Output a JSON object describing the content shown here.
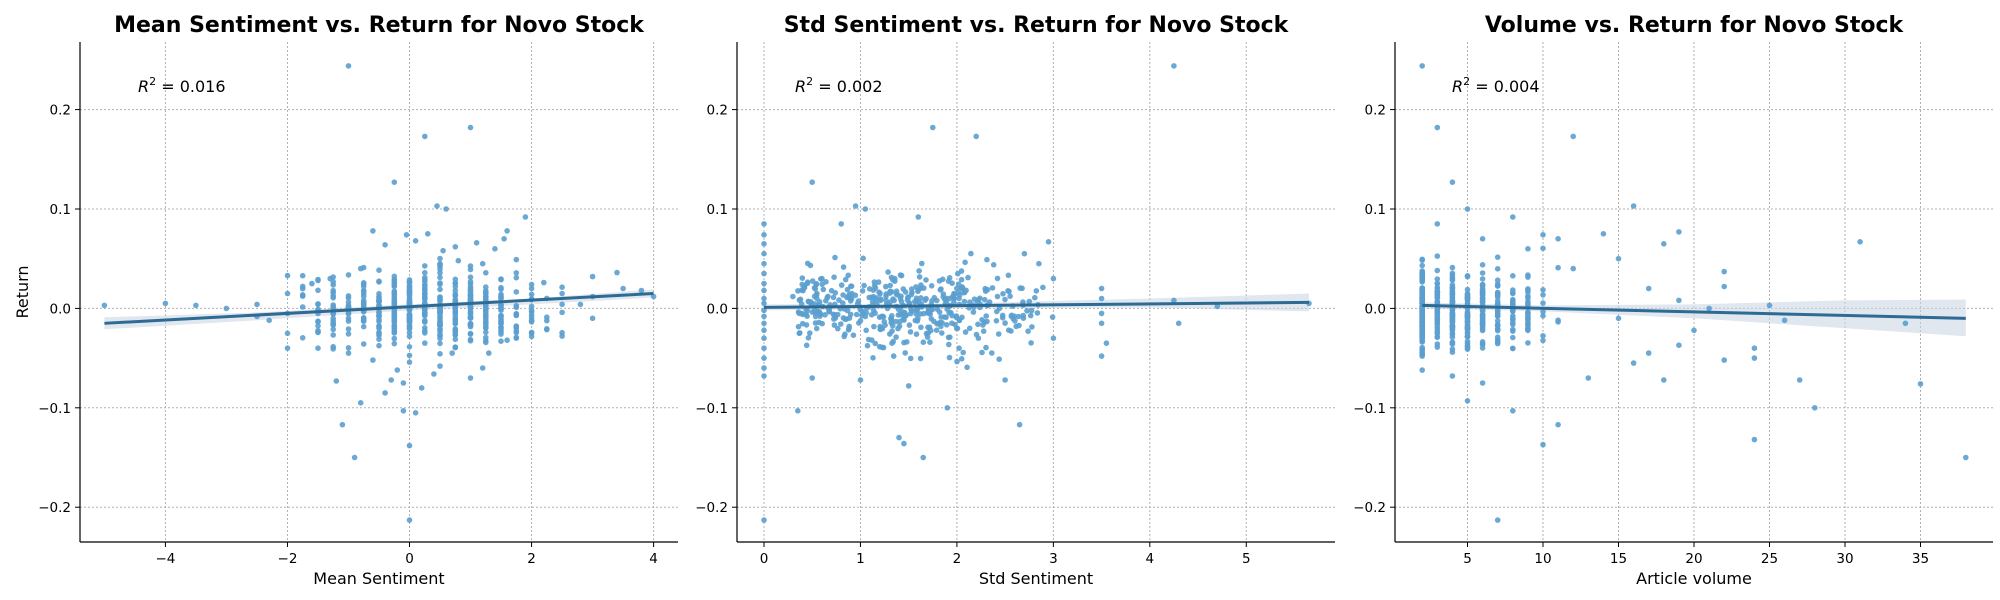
{
  "chart_data": [
    {
      "type": "scatter",
      "title": "Mean Sentiment vs. Return for Novo Stock",
      "xlabel": "Mean Sentiment",
      "ylabel": "Return",
      "annotation": {
        "prefix": "R",
        "sup": "2",
        "value": " = 0.016"
      },
      "xlim": [
        -5.4,
        4.4
      ],
      "ylim": [
        -0.235,
        0.268
      ],
      "xticks": [
        -4,
        -2,
        0,
        2,
        4
      ],
      "xticklabels": [
        "−4",
        "−2",
        "0",
        "2",
        "4"
      ],
      "yticks": [
        -0.2,
        -0.1,
        0.0,
        0.1,
        0.2
      ],
      "yticklabels": [
        "−0.2",
        "−0.1",
        "0.0",
        "0.1",
        "0.2"
      ],
      "grid": true,
      "point_color": "#5b9fcf",
      "line_color": "#2d6a94",
      "band_color": "#c6d4e1",
      "fit": {
        "x": [
          -5,
          4
        ],
        "y": [
          -0.015,
          0.015
        ]
      },
      "band": {
        "x": [
          -5,
          -2.5,
          0,
          2,
          4
        ],
        "upper": [
          -0.009,
          -0.004,
          0.004,
          0.01,
          0.019
        ],
        "lower": [
          -0.021,
          -0.012,
          -0.002,
          0.004,
          0.011
        ]
      },
      "points": [
        [
          -1.0,
          0.244
        ],
        [
          1.0,
          0.182
        ],
        [
          0.25,
          0.173
        ],
        [
          -0.25,
          0.127
        ],
        [
          0.45,
          0.103
        ],
        [
          0.6,
          0.1
        ],
        [
          1.9,
          0.092
        ],
        [
          1.6,
          0.078
        ],
        [
          1.55,
          0.07
        ],
        [
          -0.6,
          0.078
        ],
        [
          0.3,
          0.075
        ],
        [
          -0.05,
          0.074
        ],
        [
          0.1,
          0.068
        ],
        [
          1.1,
          0.066
        ],
        [
          0.75,
          0.062
        ],
        [
          -0.4,
          0.064
        ],
        [
          0.55,
          0.058
        ],
        [
          1.4,
          0.06
        ],
        [
          -5.0,
          0.003
        ],
        [
          -4.0,
          0.005
        ],
        [
          -3.5,
          0.003
        ],
        [
          -3.0,
          0.0
        ],
        [
          -2.5,
          0.004
        ],
        [
          -2.5,
          -0.008
        ],
        [
          -2.0,
          0.033
        ],
        [
          -2.0,
          0.015
        ],
        [
          -2.0,
          -0.005
        ],
        [
          -2.0,
          -0.025
        ],
        [
          -2.0,
          -0.04
        ],
        [
          3.0,
          0.032
        ],
        [
          3.0,
          0.012
        ],
        [
          3.4,
          0.036
        ],
        [
          3.5,
          0.02
        ],
        [
          3.0,
          -0.01
        ],
        [
          2.5,
          0.015
        ],
        [
          2.5,
          -0.004
        ],
        [
          4.0,
          0.012
        ],
        [
          3.8,
          0.018
        ],
        [
          2.8,
          0.004
        ],
        [
          2.0,
          0.02
        ],
        [
          2.0,
          -0.025
        ],
        [
          2.2,
          0.026
        ],
        [
          -0.3,
          -0.072
        ],
        [
          -0.1,
          -0.075
        ],
        [
          -0.4,
          -0.085
        ],
        [
          -0.8,
          -0.095
        ],
        [
          0.0,
          -0.138
        ],
        [
          0.0,
          -0.213
        ],
        [
          -1.1,
          -0.117
        ],
        [
          -0.9,
          -0.15
        ],
        [
          -0.1,
          -0.103
        ],
        [
          0.1,
          -0.105
        ],
        [
          0.2,
          -0.08
        ],
        [
          0.5,
          -0.058
        ],
        [
          1.2,
          -0.06
        ],
        [
          1.0,
          -0.07
        ],
        [
          -1.2,
          -0.073
        ],
        [
          1.6,
          -0.032
        ],
        [
          -1.5,
          -0.04
        ],
        [
          -1.0,
          -0.045
        ],
        [
          -0.6,
          -0.052
        ],
        [
          0.7,
          -0.045
        ],
        [
          0.4,
          -0.066
        ],
        [
          -0.2,
          -0.062
        ],
        [
          1.3,
          -0.045
        ],
        [
          -2.3,
          -0.012
        ],
        [
          -1.6,
          0.025
        ],
        [
          -1.3,
          0.03
        ],
        [
          1.2,
          0.045
        ],
        [
          0.8,
          0.048
        ],
        [
          -0.8,
          0.04
        ]
      ],
      "cloud": {
        "xmin": -1.8,
        "xmax": 2.5,
        "xcenter": 0.3,
        "ysd": 0.018,
        "n": 520,
        "seed": 11,
        "discrete": 0.25
      }
    },
    {
      "type": "scatter",
      "title": "Std Sentiment vs. Return for Novo Stock",
      "xlabel": "Std Sentiment",
      "ylabel": "",
      "annotation": {
        "prefix": "R",
        "sup": "2",
        "value": " = 0.002"
      },
      "xlim": [
        -0.28,
        5.92
      ],
      "ylim": [
        -0.235,
        0.268
      ],
      "xticks": [
        0,
        1,
        2,
        3,
        4,
        5
      ],
      "xticklabels": [
        "0",
        "1",
        "2",
        "3",
        "4",
        "5"
      ],
      "yticks": [
        -0.2,
        -0.1,
        0.0,
        0.1,
        0.2
      ],
      "yticklabels": [
        "−0.2",
        "−0.1",
        "0.0",
        "0.1",
        "0.2"
      ],
      "grid": true,
      "point_color": "#5b9fcf",
      "line_color": "#2d6a94",
      "band_color": "#c6d4e1",
      "fit": {
        "x": [
          0,
          5.65
        ],
        "y": [
          0.001,
          0.006
        ]
      },
      "band": {
        "x": [
          0,
          2,
          4,
          5.65
        ],
        "upper": [
          0.004,
          0.005,
          0.01,
          0.015
        ],
        "lower": [
          -0.002,
          0.0,
          0.001,
          -0.003
        ]
      },
      "points": [
        [
          4.25,
          0.244
        ],
        [
          1.75,
          0.182
        ],
        [
          2.2,
          0.173
        ],
        [
          0.5,
          0.127
        ],
        [
          0.95,
          0.103
        ],
        [
          1.05,
          0.1
        ],
        [
          1.6,
          0.092
        ],
        [
          0.8,
          0.085
        ],
        [
          0.0,
          0.085
        ],
        [
          0.0,
          0.074
        ],
        [
          0.0,
          0.065
        ],
        [
          0.0,
          0.055
        ],
        [
          0.0,
          0.045
        ],
        [
          0.0,
          0.035
        ],
        [
          0.0,
          0.025
        ],
        [
          0.0,
          0.018
        ],
        [
          0.0,
          0.01
        ],
        [
          0.0,
          0.005
        ],
        [
          0.0,
          -0.002
        ],
        [
          0.0,
          -0.008
        ],
        [
          0.0,
          -0.015
        ],
        [
          0.0,
          -0.022
        ],
        [
          0.0,
          -0.03
        ],
        [
          0.0,
          -0.04
        ],
        [
          0.0,
          -0.05
        ],
        [
          0.0,
          -0.06
        ],
        [
          0.0,
          -0.068
        ],
        [
          0.0,
          -0.213
        ],
        [
          0.35,
          -0.103
        ],
        [
          1.4,
          -0.13
        ],
        [
          1.45,
          -0.136
        ],
        [
          1.65,
          -0.15
        ],
        [
          1.9,
          -0.1
        ],
        [
          2.65,
          -0.117
        ],
        [
          1.0,
          -0.072
        ],
        [
          1.5,
          -0.078
        ],
        [
          2.5,
          -0.072
        ],
        [
          3.5,
          -0.048
        ],
        [
          3.55,
          -0.035
        ],
        [
          2.95,
          0.067
        ],
        [
          4.25,
          0.008
        ],
        [
          4.3,
          -0.015
        ],
        [
          5.65,
          0.005
        ],
        [
          4.7,
          0.002
        ],
        [
          3.5,
          0.02
        ],
        [
          3.5,
          0.01
        ],
        [
          3.5,
          -0.005
        ],
        [
          3.5,
          -0.015
        ],
        [
          3.0,
          0.03
        ],
        [
          3.0,
          -0.03
        ],
        [
          2.85,
          0.045
        ],
        [
          2.7,
          0.055
        ],
        [
          0.3,
          0.012
        ],
        [
          0.4,
          -0.006
        ],
        [
          0.6,
          0.03
        ],
        [
          0.5,
          -0.07
        ]
      ],
      "cloud": {
        "xmin": 0.35,
        "xmax": 3.3,
        "xcenter": 1.4,
        "ysd": 0.02,
        "n": 470,
        "seed": 23,
        "discrete": 0
      }
    },
    {
      "type": "scatter",
      "title": "Volume vs. Return for Novo Stock",
      "xlabel": "Article volume",
      "ylabel": "",
      "annotation": {
        "prefix": "R",
        "sup": "2",
        "value": " = 0.004"
      },
      "xlim": [
        0.2,
        39.8
      ],
      "ylim": [
        -0.235,
        0.268
      ],
      "xticks": [
        5,
        10,
        15,
        20,
        25,
        30,
        35
      ],
      "xticklabels": [
        "5",
        "10",
        "15",
        "20",
        "25",
        "30",
        "35"
      ],
      "yticks": [
        -0.2,
        -0.1,
        0.0,
        0.1,
        0.2
      ],
      "yticklabels": [
        "−0.2",
        "−0.1",
        "0.0",
        "0.1",
        "0.2"
      ],
      "grid": true,
      "point_color": "#5b9fcf",
      "line_color": "#2d6a94",
      "band_color": "#c6d4e1",
      "fit": {
        "x": [
          2,
          38
        ],
        "y": [
          0.003,
          -0.01
        ]
      },
      "band": {
        "x": [
          2,
          10,
          20,
          30,
          38
        ],
        "upper": [
          0.006,
          0.003,
          0.004,
          0.008,
          0.009
        ],
        "lower": [
          0.0,
          -0.003,
          -0.01,
          -0.02,
          -0.028
        ]
      },
      "points": [
        [
          2,
          0.244
        ],
        [
          3,
          0.182
        ],
        [
          12,
          0.173
        ],
        [
          4,
          0.127
        ],
        [
          5,
          0.1
        ],
        [
          16,
          0.103
        ],
        [
          31,
          0.067
        ],
        [
          19,
          0.077
        ],
        [
          18,
          0.065
        ],
        [
          14,
          0.075
        ],
        [
          8,
          0.092
        ],
        [
          10,
          0.074
        ],
        [
          11,
          0.07
        ],
        [
          22,
          0.037
        ],
        [
          22,
          0.022
        ],
        [
          25,
          0.003
        ],
        [
          24,
          -0.04
        ],
        [
          24,
          -0.05
        ],
        [
          26,
          -0.012
        ],
        [
          28,
          -0.1
        ],
        [
          27,
          -0.072
        ],
        [
          35,
          -0.076
        ],
        [
          38,
          -0.15
        ],
        [
          34,
          -0.015
        ],
        [
          24,
          -0.132
        ],
        [
          22,
          -0.052
        ],
        [
          20,
          -0.022
        ],
        [
          19,
          -0.037
        ],
        [
          18,
          -0.072
        ],
        [
          17,
          -0.045
        ],
        [
          16,
          -0.055
        ],
        [
          10,
          -0.137
        ],
        [
          11,
          -0.117
        ],
        [
          8,
          -0.103
        ],
        [
          7,
          -0.213
        ],
        [
          5,
          -0.093
        ],
        [
          6,
          -0.075
        ],
        [
          13,
          -0.07
        ],
        [
          15,
          -0.01
        ],
        [
          15,
          0.05
        ],
        [
          17,
          0.02
        ],
        [
          19,
          0.008
        ],
        [
          21,
          0.0
        ],
        [
          12,
          0.04
        ],
        [
          9,
          0.06
        ],
        [
          6,
          0.07
        ],
        [
          3,
          0.085
        ],
        [
          4,
          -0.068
        ],
        [
          2,
          -0.048
        ]
      ],
      "cloud": {
        "xmin": 2,
        "xmax": 15,
        "xcenter": 4,
        "ysd": 0.02,
        "n": 500,
        "seed": 37,
        "discrete": 1
      }
    }
  ]
}
